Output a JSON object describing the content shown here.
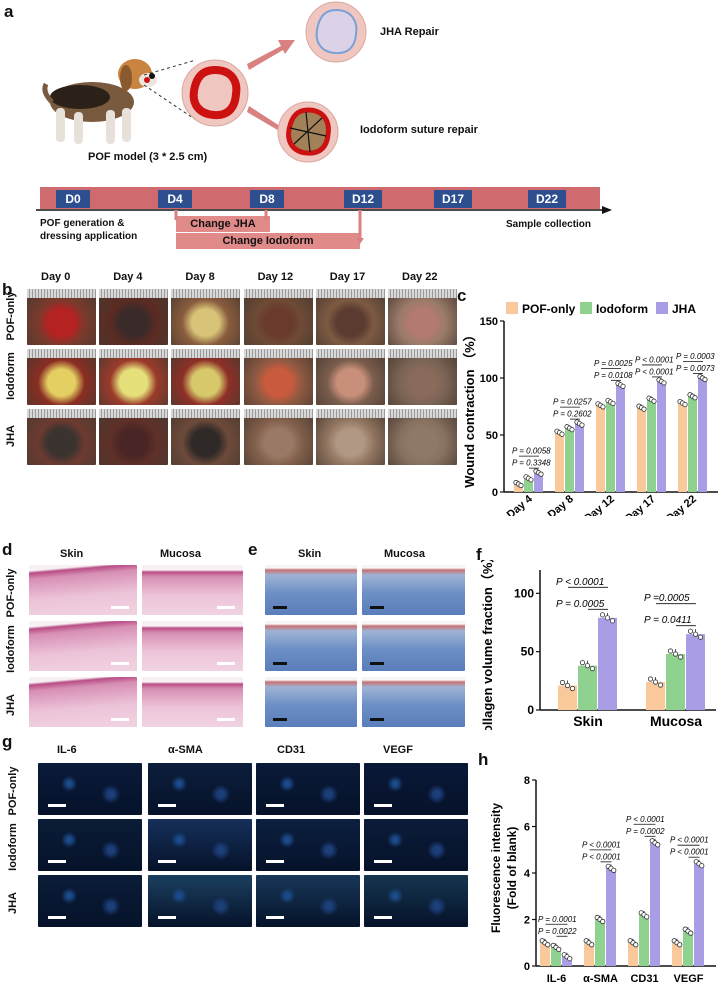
{
  "panels": {
    "a": "a",
    "b": "b",
    "c": "c",
    "d": "d",
    "e": "e",
    "f": "f",
    "g": "g",
    "h": "h"
  },
  "a": {
    "model_label": "POF model (3 * 2.5 cm)",
    "jha_label": "JHA Repair",
    "iodo_label": "Iodoform suture repair",
    "timeline_days": [
      "D0",
      "D4",
      "D8",
      "D12",
      "D17",
      "D22"
    ],
    "start_label_1": "POF generation &",
    "start_label_2": "dressing application",
    "change_jha": "Change JHA",
    "change_iodo": "Change Iodoform",
    "end_label": "Sample collection",
    "colors": {
      "timeline": "#cf6b6e",
      "day_box": "#2d4f8f",
      "wound": "#cc1111"
    }
  },
  "b": {
    "days": [
      "Day 0",
      "Day 4",
      "Day 8",
      "Day 12",
      "Day 17",
      "Day 22"
    ],
    "rows": [
      "POF-only",
      "Iodoform",
      "JHA"
    ]
  },
  "d": {
    "cols": [
      "Skin",
      "Mucosa"
    ],
    "rows": [
      "POF-only",
      "Iodoform",
      "JHA"
    ]
  },
  "e": {
    "cols": [
      "Skin",
      "Mucosa"
    ]
  },
  "g": {
    "cols": [
      "IL-6",
      "α-SMA",
      "CD31",
      "VEGF"
    ],
    "rows": [
      "POF-only",
      "Iodoform",
      "JHA"
    ]
  },
  "legend": [
    {
      "name": "POF-only",
      "color": "#f9c99b"
    },
    {
      "name": "Iodoform",
      "color": "#8fd18f"
    },
    {
      "name": "JHA",
      "color": "#a99ee6"
    }
  ],
  "chart_data": [
    {
      "panel": "c",
      "type": "bar",
      "ylabel": "Wound contraction （%）",
      "ylim": [
        0,
        150
      ],
      "yticks": [
        0,
        50,
        100,
        150
      ],
      "categories": [
        "Day 4",
        "Day 8",
        "Day 12",
        "Day 17",
        "Day 22"
      ],
      "series": [
        {
          "name": "POF-only",
          "values": [
            7,
            52,
            76,
            74,
            78
          ]
        },
        {
          "name": "Iodoform",
          "values": [
            12,
            56,
            79,
            81,
            84
          ]
        },
        {
          "name": "JHA",
          "values": [
            17,
            60,
            94,
            97,
            100
          ]
        }
      ],
      "pvalues": [
        [
          "P = 0.0058",
          "P = 0.3348"
        ],
        [
          "P = 0.0257",
          "P = 0.2602"
        ],
        [
          "P = 0.0025",
          "P = 0.0108"
        ],
        [
          "P < 0.0001",
          "P < 0.0001"
        ],
        [
          "P = 0.0003",
          "P = 0.0073"
        ]
      ]
    },
    {
      "panel": "f",
      "type": "bar",
      "ylabel": "Collagen volume fraction（%）",
      "ylim": [
        0,
        120
      ],
      "yticks": [
        0,
        50,
        100
      ],
      "categories": [
        "Skin",
        "Mucosa"
      ],
      "series": [
        {
          "name": "POF-only",
          "values": [
            21,
            24
          ]
        },
        {
          "name": "Iodoform",
          "values": [
            38,
            48
          ]
        },
        {
          "name": "JHA",
          "values": [
            79,
            65
          ]
        }
      ],
      "pvalues": [
        [
          "P < 0.0001",
          "P = 0.0005"
        ],
        [
          "P =0.0005",
          "P = 0.0411"
        ]
      ]
    },
    {
      "panel": "h",
      "type": "bar",
      "ylabel_1": "Fluorescence intensity",
      "ylabel_2": "(Fold of blank)",
      "ylim": [
        0,
        8
      ],
      "yticks": [
        0,
        2,
        4,
        6,
        8
      ],
      "categories": [
        "IL-6",
        "α-SMA",
        "CD31",
        "VEGF"
      ],
      "series": [
        {
          "name": "POF-only",
          "values": [
            1.0,
            1.0,
            1.0,
            1.0
          ]
        },
        {
          "name": "Iodoform",
          "values": [
            0.8,
            2.0,
            2.2,
            1.5
          ]
        },
        {
          "name": "JHA",
          "values": [
            0.4,
            4.2,
            5.3,
            4.4
          ]
        }
      ],
      "pvalues": [
        [
          "P = 0.0001",
          "P = 0.0022"
        ],
        [
          "P < 0.0001",
          "P < 0.0001"
        ],
        [
          "P < 0.0001",
          "P = 0.0002"
        ],
        [
          "P < 0.0001",
          "P < 0.0001"
        ]
      ]
    }
  ]
}
